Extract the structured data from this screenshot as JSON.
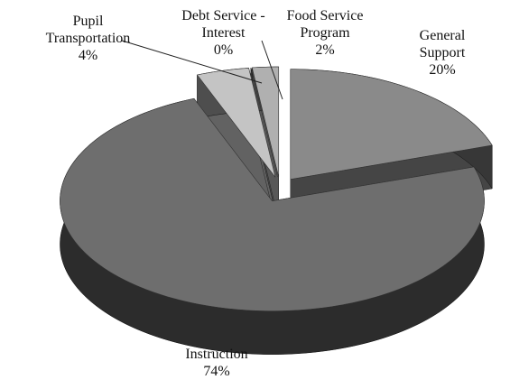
{
  "chart_data": {
    "type": "pie",
    "categories": [
      "General Support",
      "Instruction",
      "Pupil Transportation",
      "Debt Service - Interest",
      "Food Service Program"
    ],
    "values": [
      20,
      74,
      4,
      0,
      2
    ],
    "value_labels": [
      "20%",
      "74%",
      "4%",
      "0%",
      "2%"
    ],
    "colors": [
      "#8a8a8a",
      "#6e6e6e",
      "#c4c4c4",
      "#9a9a9a",
      "#b0b0b0"
    ]
  }
}
